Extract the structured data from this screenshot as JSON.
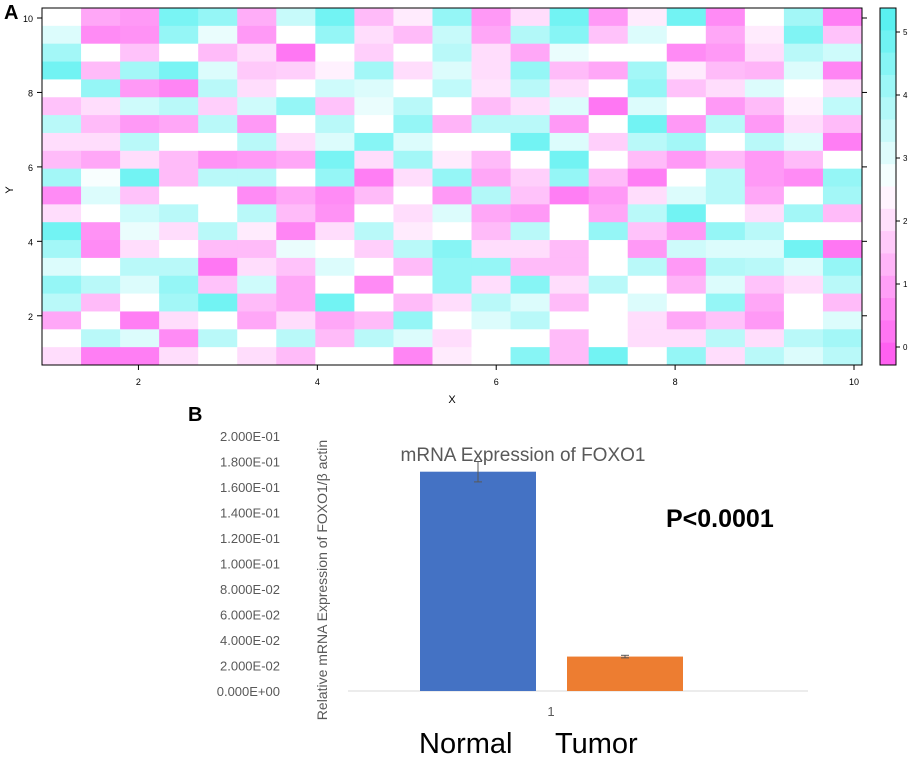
{
  "panels": {
    "a": "A",
    "b": "B"
  },
  "heatmap": {
    "xlabel": "X",
    "ylabel": "Y",
    "x_ticks": [
      "2",
      "4",
      "6",
      "8",
      "10"
    ],
    "y_ticks": [
      "2",
      "4",
      "6",
      "8",
      "10"
    ],
    "colorbar_ticks": [
      "0",
      "1",
      "2",
      "3",
      "4",
      "5"
    ],
    "colors": {
      "low": "#ff55f0",
      "mid": "#ffffff",
      "high": "#4ff0f0"
    }
  },
  "chart_data": [
    {
      "type": "heatmap",
      "title": "",
      "xlabel": "X",
      "ylabel": "Y",
      "xlim": [
        1,
        10
      ],
      "ylim": [
        1,
        10
      ],
      "zlim": [
        0,
        5
      ],
      "n_cols": 21,
      "n_rows": 20,
      "values": [
        [
          2.5,
          1.2,
          1.0,
          4.4,
          4.0,
          1.3,
          3.3,
          4.5,
          1.5,
          2.2,
          4.0,
          1.0,
          2.0,
          4.5,
          1.0,
          2.2,
          4.5,
          0.8,
          2.5,
          3.8,
          0.6
        ],
        [
          3.0,
          0.8,
          0.9,
          4.0,
          2.8,
          1.0,
          2.5,
          4.0,
          2.0,
          1.5,
          3.3,
          1.2,
          3.6,
          4.2,
          1.6,
          3.0,
          2.5,
          1.2,
          2.2,
          4.3,
          1.6
        ],
        [
          3.8,
          2.5,
          1.6,
          2.5,
          1.5,
          2.0,
          0.5,
          2.5,
          1.8,
          2.5,
          3.5,
          2.0,
          1.2,
          2.8,
          2.5,
          2.5,
          0.8,
          1.0,
          2.0,
          3.5,
          3.2
        ],
        [
          4.5,
          1.5,
          3.8,
          4.4,
          3.0,
          1.7,
          1.8,
          2.3,
          3.8,
          2.0,
          3.0,
          2.0,
          4.0,
          1.5,
          1.2,
          3.8,
          2.2,
          1.5,
          1.4,
          3.0,
          0.7
        ],
        [
          2.5,
          4.0,
          1.0,
          0.7,
          3.5,
          2.0,
          2.5,
          3.2,
          3.0,
          2.5,
          3.4,
          2.1,
          3.5,
          2.0,
          2.5,
          4.0,
          1.6,
          2.0,
          3.0,
          2.5,
          2.0
        ],
        [
          1.6,
          2.0,
          3.2,
          3.5,
          1.8,
          3.2,
          4.0,
          1.6,
          2.8,
          3.5,
          2.5,
          1.5,
          2.0,
          3.0,
          0.5,
          3.0,
          2.5,
          1.0,
          1.5,
          2.3,
          3.4
        ],
        [
          3.5,
          1.5,
          1.0,
          1.2,
          3.5,
          1.0,
          2.5,
          3.5,
          2.5,
          4.0,
          1.4,
          3.5,
          3.5,
          1.0,
          2.5,
          4.5,
          1.0,
          3.5,
          1.0,
          2.0,
          1.5
        ],
        [
          2.0,
          2.0,
          3.5,
          2.5,
          2.5,
          3.5,
          2.0,
          3.0,
          4.2,
          3.0,
          2.5,
          2.5,
          4.5,
          3.0,
          1.8,
          3.5,
          3.8,
          2.5,
          3.5,
          3.0,
          0.6
        ],
        [
          1.5,
          1.2,
          2.0,
          1.5,
          0.9,
          1.0,
          1.2,
          4.4,
          2.0,
          3.8,
          2.2,
          1.5,
          2.5,
          4.5,
          2.5,
          1.5,
          1.0,
          1.5,
          1.0,
          1.5,
          2.5
        ],
        [
          3.8,
          2.6,
          4.5,
          1.5,
          3.5,
          3.5,
          2.5,
          4.0,
          0.6,
          2.0,
          4.0,
          1.2,
          1.8,
          4.0,
          1.5,
          0.6,
          2.5,
          3.5,
          1.0,
          0.8,
          4.0
        ],
        [
          0.8,
          3.0,
          1.6,
          2.5,
          2.5,
          0.8,
          1.2,
          0.8,
          1.5,
          2.5,
          1.0,
          3.6,
          1.6,
          0.6,
          1.0,
          2.0,
          3.0,
          3.5,
          1.2,
          2.5,
          3.8
        ],
        [
          2.0,
          2.5,
          3.2,
          3.5,
          2.5,
          3.5,
          1.5,
          0.9,
          2.5,
          2.0,
          3.0,
          1.2,
          1.0,
          2.5,
          1.2,
          3.5,
          4.5,
          2.5,
          2.0,
          3.8,
          1.5
        ],
        [
          4.5,
          0.9,
          2.8,
          2.0,
          3.5,
          2.2,
          0.7,
          2.0,
          3.5,
          2.2,
          2.5,
          1.5,
          3.5,
          2.5,
          4.0,
          1.6,
          1.0,
          4.0,
          3.5,
          2.5,
          2.5
        ],
        [
          3.8,
          0.8,
          2.0,
          2.5,
          1.5,
          1.5,
          2.8,
          2.5,
          1.8,
          3.5,
          4.2,
          2.0,
          2.0,
          1.5,
          2.5,
          1.0,
          3.2,
          3.0,
          3.0,
          4.5,
          0.5
        ],
        [
          3.0,
          2.5,
          3.5,
          3.5,
          0.5,
          2.0,
          1.6,
          3.0,
          2.5,
          1.5,
          4.0,
          4.0,
          1.5,
          1.5,
          2.5,
          3.5,
          1.0,
          3.6,
          3.5,
          3.0,
          4.0
        ],
        [
          4.0,
          3.5,
          3.0,
          4.0,
          1.6,
          3.2,
          1.2,
          2.5,
          0.8,
          2.5,
          4.0,
          2.0,
          4.2,
          2.0,
          3.5,
          2.5,
          1.4,
          3.0,
          1.6,
          2.0,
          3.5
        ],
        [
          3.5,
          1.5,
          2.5,
          3.8,
          4.5,
          1.5,
          1.2,
          4.5,
          2.5,
          1.5,
          2.0,
          3.5,
          3.0,
          1.5,
          2.5,
          3.0,
          2.5,
          4.0,
          1.2,
          2.5,
          1.5
        ],
        [
          1.2,
          2.5,
          0.6,
          2.0,
          2.5,
          1.2,
          2.0,
          1.2,
          1.5,
          4.0,
          2.5,
          3.0,
          3.5,
          2.5,
          2.5,
          2.0,
          1.2,
          1.6,
          1.0,
          2.5,
          3.0
        ],
        [
          2.5,
          3.5,
          3.0,
          0.8,
          3.5,
          2.5,
          3.5,
          1.5,
          3.5,
          3.0,
          2.0,
          2.5,
          2.5,
          1.5,
          2.5,
          2.0,
          2.0,
          3.5,
          2.0,
          3.5,
          3.8
        ],
        [
          2.0,
          0.6,
          0.6,
          2.0,
          2.5,
          2.0,
          1.5,
          2.5,
          2.5,
          0.7,
          2.2,
          2.5,
          4.2,
          1.5,
          4.5,
          2.5,
          4.0,
          2.0,
          3.5,
          3.0,
          3.5
        ]
      ]
    },
    {
      "type": "bar",
      "title": "mRNA Expression of FOXO1",
      "xlabel": "",
      "ylabel": "Relative mRNA  Expression of FOXO1/β actin",
      "categories": [
        "1"
      ],
      "series": [
        {
          "name": "Normal",
          "values": [
            0.172
          ],
          "error": [
            0.008
          ],
          "color": "#4472c4"
        },
        {
          "name": "Tumor",
          "values": [
            0.027
          ],
          "error": [
            0.001
          ],
          "color": "#ed7d31"
        }
      ],
      "ylim": [
        0,
        0.2
      ],
      "y_ticks": [
        "0.000E+00",
        "2.000E-02",
        "4.000E-02",
        "6.000E-02",
        "8.000E-02",
        "1.000E-01",
        "1.200E-01",
        "1.400E-01",
        "1.600E-01",
        "1.800E-01",
        "2.000E-01"
      ],
      "annotation": "P<0.0001",
      "group_labels": [
        "Normal",
        "Tumor"
      ]
    }
  ]
}
